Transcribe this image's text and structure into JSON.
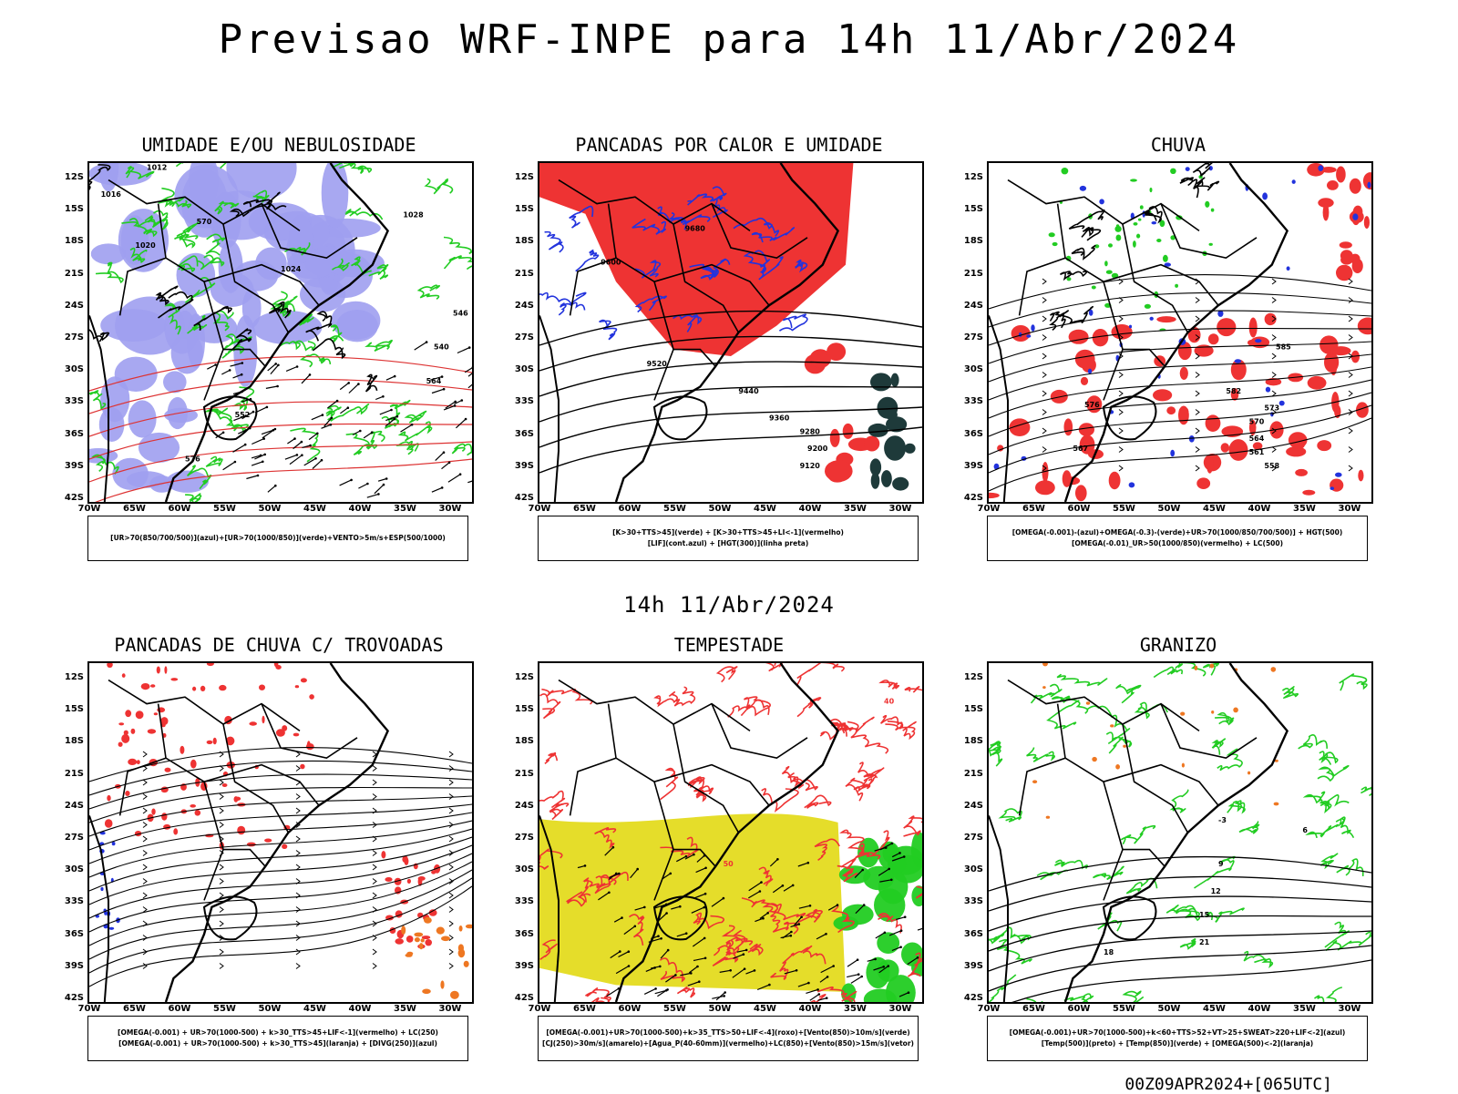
{
  "header": {
    "title": "Previsao WRF-INPE  para 14h 11/Abr/2024"
  },
  "mid_title": "14h 11/Abr/2024",
  "footer": "00Z09APR2024+[065UTC]",
  "axes": {
    "lat_labels": [
      "12S",
      "15S",
      "18S",
      "21S",
      "24S",
      "27S",
      "30S",
      "33S",
      "36S",
      "39S",
      "42S"
    ],
    "lon_labels": [
      "70W",
      "65W",
      "60W",
      "55W",
      "50W",
      "45W",
      "40W",
      "35W",
      "30W"
    ]
  },
  "panels": [
    {
      "title": "UMIDADE E/OU NEBULOSIDADE",
      "legend": [
        "[UR>70(850/700/500)](azul)+[UR>70(1000/850)](verde)+VENTO>5m/s+ESP(500/1000)"
      ],
      "contour_labels": [
        "1012",
        "1016",
        "1020",
        "1024",
        "1028",
        "552",
        "576",
        "570",
        "540",
        "546",
        "564"
      ]
    },
    {
      "title": "PANCADAS POR CALOR E UMIDADE",
      "legend": [
        "[K>30+TTS>45](verde) + [K>30+TTS>45+LI<-1](vermelho)",
        "[LIF](cont.azul) + [HGT(300)](linha preta)"
      ],
      "contour_labels": [
        "9680",
        "9600",
        "9520",
        "9440",
        "9360",
        "9280",
        "9200",
        "9120"
      ]
    },
    {
      "title": "CHUVA",
      "legend": [
        "[OMEGA(-0.001)-(azul)+OMEGA(-0.3)-(verde)+UR>70(1000/850/700/500)] + HGT(500)",
        "[OMEGA(-0.01)_UR>50(1000/850)(vermelho) + LC(500)"
      ],
      "contour_labels": [
        "585",
        "582",
        "576",
        "573",
        "570",
        "567",
        "564",
        "561",
        "558"
      ]
    },
    {
      "title": "PANCADAS DE CHUVA C/ TROVOADAS",
      "legend": [
        "[OMEGA(-0.001) + UR>70(1000-500) + k>30_TTS>45+LIF<-1](vermelho) + LC(250)",
        "[OMEGA(-0.001) + UR>70(1000-500) + k>30_TTS>45](laranja) + [DIVG(250)](azul)"
      ],
      "contour_labels": []
    },
    {
      "title": "TEMPESTADE",
      "legend": [
        "[OMEGA(-0.001)+UR>70(1000-500)+k>35_TTS>50+LIF<-4](roxo)+[Vento(850)>10m/s](verde)",
        "[CJ(250)>30m/s](amarelo)+[Agua_P(40-60mm)](vermelho)+LC(850)+[Vento(850)>15m/s](vetor)"
      ],
      "contour_labels": [
        "50",
        "40"
      ]
    },
    {
      "title": "GRANIZO",
      "legend": [
        "[OMEGA(-0.001)+UR>70(1000-500)+k<60+TTS>52+VT>25+SWEAT>220+LIF<-2](azul)",
        "[Temp(500)](preto) + [Temp(850)](verde) + [OMEGA(500)<-2](laranja)"
      ],
      "contour_labels": [
        "-3",
        "6",
        "9",
        "12",
        "15",
        "18",
        "21"
      ]
    }
  ],
  "colors": {
    "blue_fill": "#9f9fef",
    "green": "#22cc22",
    "red": "#ee3333",
    "yellow": "#e5dd2a",
    "orange": "#ee7722",
    "dark_teal": "#1e3a3a",
    "black": "#000000",
    "dark_blue": "#2233dd"
  }
}
